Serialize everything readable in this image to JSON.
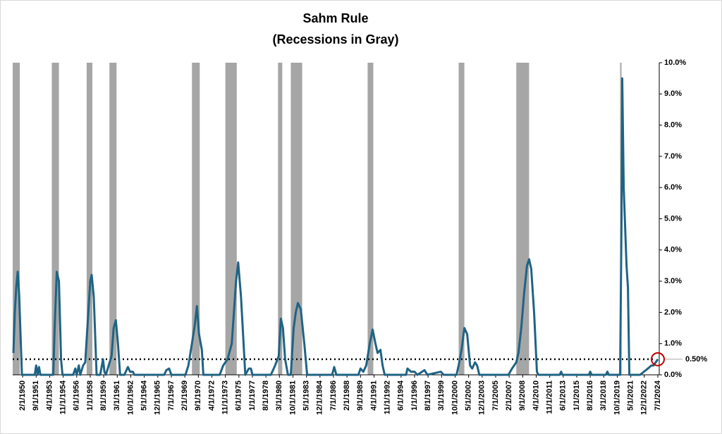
{
  "chart_data": {
    "type": "line",
    "title": "Sahm Rule",
    "subtitle": "(Recessions in Gray)",
    "color": "#1f6384",
    "recession_color": "#a6a6a6",
    "recessions": [
      [
        "1948-11-01",
        "1949-10-01"
      ],
      [
        "1953-07-01",
        "1954-05-01"
      ],
      [
        "1957-08-01",
        "1958-04-01"
      ],
      [
        "1960-04-01",
        "1961-02-01"
      ],
      [
        "1969-12-01",
        "1970-11-01"
      ],
      [
        "1973-11-01",
        "1975-03-01"
      ],
      [
        "1980-01-01",
        "1980-07-01"
      ],
      [
        "1981-07-01",
        "1982-11-01"
      ],
      [
        "1990-07-01",
        "1991-03-01"
      ],
      [
        "2001-03-01",
        "2001-11-01"
      ],
      [
        "2007-12-01",
        "2009-06-01"
      ],
      [
        "2020-02-01",
        "2020-04-01"
      ]
    ],
    "x": [
      "1949-01-01",
      "1949-03-01",
      "1949-05-01",
      "1949-07-01",
      "1949-09-01",
      "1949-11-01",
      "1950-01-01",
      "1951-07-01",
      "1951-09-01",
      "1951-11-01",
      "1952-01-01",
      "1952-03-01",
      "1953-09-01",
      "1953-11-01",
      "1954-02-01",
      "1954-05-01",
      "1954-08-01",
      "1954-10-01",
      "1956-01-01",
      "1956-04-01",
      "1956-06-01",
      "1956-09-01",
      "1956-11-01",
      "1957-03-01",
      "1957-06-01",
      "1957-09-01",
      "1958-01-01",
      "1958-03-01",
      "1958-06-01",
      "1958-10-01",
      "1959-03-01",
      "1959-07-01",
      "1959-09-01",
      "1959-11-01",
      "1960-03-01",
      "1960-07-01",
      "1960-10-01",
      "1961-01-01",
      "1961-04-01",
      "1961-07-01",
      "1962-01-01",
      "1962-06-01",
      "1962-09-01",
      "1963-01-01",
      "1963-03-01",
      "1966-09-01",
      "1966-12-01",
      "1967-04-01",
      "1967-07-01",
      "1969-03-01",
      "1969-07-01",
      "1969-12-01",
      "1970-04-01",
      "1970-07-01",
      "1970-10-01",
      "1971-02-01",
      "1971-04-01",
      "1973-03-01",
      "1973-08-01",
      "1974-02-01",
      "1974-08-01",
      "1975-02-01",
      "1975-05-01",
      "1975-09-01",
      "1976-03-01",
      "1976-08-01",
      "1976-11-01",
      "1977-01-01",
      "1979-03-01",
      "1979-09-01",
      "1980-02-01",
      "1980-05-01",
      "1980-08-01",
      "1980-11-01",
      "1981-03-01",
      "1981-07-01",
      "1981-11-01",
      "1982-02-01",
      "1982-05-01",
      "1982-09-01",
      "1983-02-01",
      "1983-06-01",
      "1986-05-01",
      "1986-08-01",
      "1986-11-01",
      "1989-06-01",
      "1989-09-01",
      "1990-01-01",
      "1990-05-01",
      "1990-10-01",
      "1991-02-01",
      "1991-06-01",
      "1991-09-01",
      "1992-01-01",
      "1992-04-01",
      "1992-07-01",
      "1995-01-01",
      "1995-03-01",
      "1995-08-01",
      "1996-01-01",
      "1996-05-01",
      "1997-03-01",
      "1997-07-01",
      "1999-02-01",
      "1999-06-01",
      "2000-12-01",
      "2001-03-01",
      "2001-07-01",
      "2001-11-01",
      "2002-03-01",
      "2002-07-01",
      "2002-10-01",
      "2003-02-01",
      "2003-05-01",
      "2003-08-01",
      "2007-01-01",
      "2007-06-01",
      "2007-12-01",
      "2008-03-01",
      "2008-07-01",
      "2008-11-01",
      "2009-03-01",
      "2009-06-01",
      "2009-09-01",
      "2010-01-01",
      "2010-05-01",
      "2010-07-01",
      "2013-01-01",
      "2013-03-01",
      "2013-05-01",
      "2016-06-01",
      "2016-08-01",
      "2016-10-01",
      "2018-06-01",
      "2018-08-01",
      "2018-10-01",
      "2020-02-01",
      "2020-04-01",
      "2020-05-01",
      "2020-07-01",
      "2020-11-01",
      "2021-01-01",
      "2021-03-01",
      "2022-06-01",
      "2023-05-01",
      "2023-10-01",
      "2024-01-01",
      "2024-04-01",
      "2024-07-01"
    ],
    "values": [
      0.7,
      2.0,
      2.8,
      3.3,
      2.6,
      1.3,
      0,
      0,
      0.3,
      0,
      0.25,
      0,
      0,
      1.5,
      3.3,
      3.0,
      0.5,
      0,
      0,
      0.2,
      0,
      0.3,
      0,
      0.3,
      0.4,
      1.5,
      3.0,
      3.2,
      2.5,
      0,
      0,
      0.5,
      0.1,
      0,
      0.3,
      0.6,
      1.5,
      1.75,
      1.0,
      0,
      0,
      0.25,
      0.1,
      0.1,
      0,
      0,
      0.15,
      0.2,
      0,
      0,
      0.3,
      1.0,
      1.6,
      2.2,
      1.3,
      0.8,
      0,
      0,
      0.3,
      0.5,
      1.0,
      3.0,
      3.6,
      2.5,
      0,
      0.2,
      0.2,
      0,
      0,
      0.3,
      0.6,
      1.8,
      1.5,
      0.5,
      0,
      0,
      1.5,
      2.0,
      2.3,
      2.1,
      1.0,
      0,
      0,
      0.25,
      0,
      0,
      0.2,
      0.1,
      0.3,
      1.0,
      1.45,
      1.0,
      0.7,
      0.8,
      0.3,
      0,
      0,
      0.2,
      0.1,
      0.1,
      0,
      0.15,
      0,
      0.1,
      0,
      0,
      0.3,
      0.8,
      1.5,
      1.3,
      0.3,
      0.2,
      0.4,
      0.3,
      0,
      0,
      0.2,
      0.4,
      0.7,
      1.5,
      2.6,
      3.5,
      3.7,
      3.4,
      2.0,
      0.1,
      0,
      0,
      0.1,
      0,
      0,
      0.1,
      0,
      0,
      0.1,
      0,
      0,
      5.0,
      9.5,
      6.0,
      3.5,
      2.8,
      0,
      0,
      0.2,
      0.3,
      0.3,
      0.4,
      0.5
    ],
    "xlim": [
      "1948-12-01",
      "2024-09-01"
    ],
    "xticks": [
      {
        "value": "1950-02-01",
        "label": "2/1/1950"
      },
      {
        "value": "1951-09-01",
        "label": "9/1/1951"
      },
      {
        "value": "1953-04-01",
        "label": "4/1/1953"
      },
      {
        "value": "1954-11-01",
        "label": "11/1/1954"
      },
      {
        "value": "1956-06-01",
        "label": "6/1/1956"
      },
      {
        "value": "1958-01-01",
        "label": "1/1/1958"
      },
      {
        "value": "1959-08-01",
        "label": "8/1/1959"
      },
      {
        "value": "1961-03-01",
        "label": "3/1/1961"
      },
      {
        "value": "1962-10-01",
        "label": "10/1/1962"
      },
      {
        "value": "1964-05-01",
        "label": "5/1/1964"
      },
      {
        "value": "1965-12-01",
        "label": "12/1/1965"
      },
      {
        "value": "1967-07-01",
        "label": "7/1/1967"
      },
      {
        "value": "1969-02-01",
        "label": "2/1/1969"
      },
      {
        "value": "1970-09-01",
        "label": "9/1/1970"
      },
      {
        "value": "1972-04-01",
        "label": "4/1/1972"
      },
      {
        "value": "1973-11-01",
        "label": "11/1/1973"
      },
      {
        "value": "1975-06-01",
        "label": "6/1/1975"
      },
      {
        "value": "1977-01-01",
        "label": "1/1/1977"
      },
      {
        "value": "1978-08-01",
        "label": "8/1/1978"
      },
      {
        "value": "1980-03-01",
        "label": "3/1/1980"
      },
      {
        "value": "1981-10-01",
        "label": "10/1/1981"
      },
      {
        "value": "1983-05-01",
        "label": "5/1/1983"
      },
      {
        "value": "1984-12-01",
        "label": "12/1/1984"
      },
      {
        "value": "1986-07-01",
        "label": "7/1/1986"
      },
      {
        "value": "1988-02-01",
        "label": "2/1/1988"
      },
      {
        "value": "1989-09-01",
        "label": "9/1/1989"
      },
      {
        "value": "1991-04-01",
        "label": "4/1/1991"
      },
      {
        "value": "1992-11-01",
        "label": "11/1/1992"
      },
      {
        "value": "1994-06-01",
        "label": "6/1/1994"
      },
      {
        "value": "1996-01-01",
        "label": "1/1/1996"
      },
      {
        "value": "1997-08-01",
        "label": "8/1/1997"
      },
      {
        "value": "1999-03-01",
        "label": "3/1/1999"
      },
      {
        "value": "2000-10-01",
        "label": "10/1/2000"
      },
      {
        "value": "2002-05-01",
        "label": "5/1/2002"
      },
      {
        "value": "2003-12-01",
        "label": "12/1/2003"
      },
      {
        "value": "2005-07-01",
        "label": "7/1/2005"
      },
      {
        "value": "2007-02-01",
        "label": "2/1/2007"
      },
      {
        "value": "2008-09-01",
        "label": "9/1/2008"
      },
      {
        "value": "2010-04-01",
        "label": "4/1/2010"
      },
      {
        "value": "2011-11-01",
        "label": "11/1/2011"
      },
      {
        "value": "2013-06-01",
        "label": "6/1/2013"
      },
      {
        "value": "2015-01-01",
        "label": "1/1/2015"
      },
      {
        "value": "2016-08-01",
        "label": "8/1/2016"
      },
      {
        "value": "2018-03-01",
        "label": "3/1/2018"
      },
      {
        "value": "2019-10-01",
        "label": "10/1/2019"
      },
      {
        "value": "2021-05-01",
        "label": "5/1/2021"
      },
      {
        "value": "2022-12-01",
        "label": "12/1/2022"
      },
      {
        "value": "2024-07-01",
        "label": "7/1/2024"
      }
    ],
    "ylim": [
      0,
      10
    ],
    "yticks": [
      {
        "value": 0,
        "label": "0.0%"
      },
      {
        "value": 1,
        "label": "1.0%"
      },
      {
        "value": 2,
        "label": "2.0%"
      },
      {
        "value": 3,
        "label": "3.0%"
      },
      {
        "value": 4,
        "label": "4.0%"
      },
      {
        "value": 5,
        "label": "5.0%"
      },
      {
        "value": 6,
        "label": "6.0%"
      },
      {
        "value": 7,
        "label": "7.0%"
      },
      {
        "value": 8,
        "label": "8.0%"
      },
      {
        "value": 9,
        "label": "9.0%"
      },
      {
        "value": 10,
        "label": "10.0%"
      }
    ],
    "reference_line": {
      "value": 0.5,
      "label": "0.50%"
    }
  }
}
